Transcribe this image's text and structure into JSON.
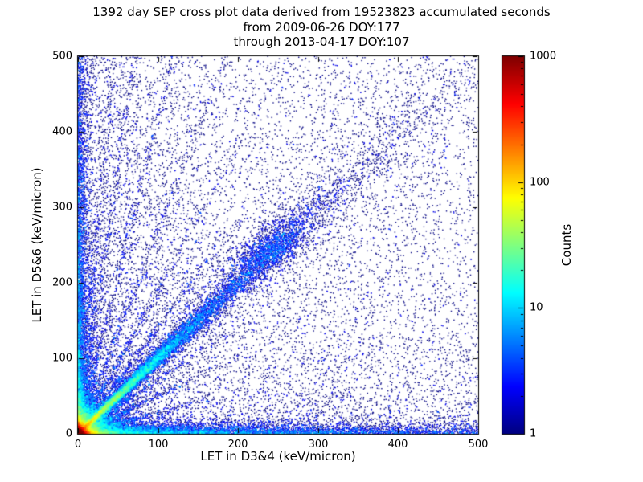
{
  "chart_data": {
    "type": "heatmap",
    "title": "1392 day SEP cross plot data derived from 19523823 accumulated seconds",
    "subtitles": [
      "from 2009-06-26 DOY:177",
      "through 2013-04-17 DOY:107"
    ],
    "xlabel": "LET in D3&4 (keV/micron)",
    "ylabel": "LET in D5&6 (keV/micron)",
    "xlim": [
      0,
      500
    ],
    "ylim": [
      0,
      500
    ],
    "xticks": [
      0,
      100,
      200,
      300,
      400,
      500
    ],
    "yticks": [
      0,
      100,
      200,
      300,
      400,
      500
    ],
    "grid": false,
    "colormap": "jet",
    "background": "#ffffff",
    "axis_color": "#000000",
    "point_color_min": "#00007f",
    "point_color_max": "#7f0000",
    "colorbar": {
      "label": "Counts",
      "scale": "log",
      "min": 1,
      "max": 1000,
      "ticks": [
        1,
        10,
        100,
        1000
      ]
    },
    "distribution": {
      "seed": 42,
      "note": "2D scatter-density of ion LET coincidences; intense hotspot at origin (~1000 counts), bright y=x diagonal track band with cluster near (240,240), bands hugging both axes, steep/shallow fan streaks from origin, sparse uniform background",
      "components": [
        {
          "name": "origin-hotspot",
          "kind": "exp2d",
          "scale_x": 3.5,
          "scale_y": 3.5,
          "count": 22000
        },
        {
          "name": "origin-halo",
          "kind": "exp2d",
          "scale_x": 13,
          "scale_y": 13,
          "count": 8000
        },
        {
          "name": "main-diagonal",
          "kind": "ray",
          "slope": 1.0,
          "range": 500,
          "decay": 85,
          "spread0": 1.2,
          "spread_growth": 0.035,
          "count": 13000
        },
        {
          "name": "diagonal-cluster",
          "kind": "blob",
          "cx": 240,
          "cy": 243,
          "sx": 30,
          "sy": 14,
          "angle": 45,
          "count": 1500
        },
        {
          "name": "wide-diagonal-band",
          "kind": "ray",
          "slope": 1.0,
          "range": 500,
          "decay": 300,
          "spread0": 12,
          "spread_growth": 0.05,
          "count": 2600
        },
        {
          "name": "x-axis-band",
          "kind": "band-x",
          "decay_x": 160,
          "scale_y": 6,
          "count": 6500
        },
        {
          "name": "y-axis-band",
          "kind": "band-y",
          "decay_y": 150,
          "scale_x": 6,
          "count": 5000
        },
        {
          "name": "steep-fan",
          "kind": "fan",
          "slopes": [
            1.4,
            1.9,
            2.7,
            4.2,
            7.0,
            11.0
          ],
          "decay": 68,
          "spread": 2.4,
          "count": 3400
        },
        {
          "name": "shallow-fan",
          "kind": "fan",
          "slopes": [
            0.08,
            0.28,
            0.5,
            0.72
          ],
          "decay": 48,
          "spread": 2.0,
          "count": 2200
        },
        {
          "name": "background-scatter",
          "kind": "uniform",
          "count": 5200
        },
        {
          "name": "left-haze",
          "kind": "haze-left",
          "decay_x": 120,
          "count": 3600
        },
        {
          "name": "bottom-haze",
          "kind": "haze-bottom",
          "decay_y": 110,
          "count": 2400
        }
      ]
    }
  }
}
